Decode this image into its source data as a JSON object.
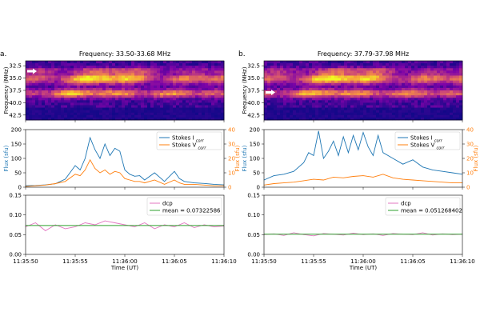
{
  "colors": {
    "stokes_i": "#1f77b4",
    "stokes_v": "#ff7f0e",
    "dcp": "#e377c2",
    "mean": "#2ca02c",
    "spectrogram_colormap": "plasma"
  },
  "chart_data": [
    {
      "panel": "a.",
      "title": "Frequency: 33.50-33.68 MHz",
      "time_ticks": [
        "11:35:50",
        "11:35:55",
        "11:36:00",
        "11:36:05",
        "11:36:10"
      ],
      "xlabel": "Time (UT)",
      "spectrogram": {
        "type": "heatmap",
        "ylabel": "Frequency (MHz)",
        "yticks": [
          "32.5",
          "35.0",
          "37.5",
          "40.0",
          "42.5"
        ],
        "ylim": [
          43.5,
          31.5
        ],
        "arrow_frequency": 33.6
      },
      "flux": {
        "type": "line",
        "ylabel": "Flux (sfu)",
        "ylabel_right": "Flux (sfu)",
        "ylim": [
          0,
          200
        ],
        "yticks": [
          "0",
          "50",
          "100",
          "150",
          "200"
        ],
        "ylim_right": [
          0,
          40
        ],
        "yticks_right": [
          "0",
          "10",
          "20",
          "30",
          "40"
        ],
        "legend_position": "top-right",
        "series": [
          {
            "name": "Stokes I",
            "sub": "corr",
            "axis": "left",
            "x": [
              0,
              1,
              2,
              3,
              4,
              5,
              5.5,
              6,
              6.5,
              7,
              7.5,
              8,
              8.5,
              9,
              9.5,
              10,
              10.5,
              11,
              11.5,
              12,
              13,
              14,
              15,
              15.5,
              16,
              17,
              18,
              19,
              20
            ],
            "values": [
              5,
              6,
              8,
              12,
              28,
              75,
              60,
              100,
              172,
              130,
              100,
              150,
              110,
              135,
              125,
              60,
              45,
              38,
              40,
              25,
              50,
              20,
              55,
              30,
              20,
              15,
              13,
              10,
              8
            ]
          },
          {
            "name": "Stokes V",
            "sub": "corr",
            "axis": "right",
            "x": [
              0,
              1,
              2,
              3,
              4,
              5,
              5.5,
              6,
              6.5,
              7,
              7.5,
              8,
              8.5,
              9,
              9.5,
              10,
              10.5,
              11,
              11.5,
              12,
              13,
              14,
              15,
              15.5,
              16,
              17,
              18,
              19,
              20
            ],
            "values": [
              0.5,
              1,
              1.5,
              2.5,
              4,
              9,
              8,
              12,
              19,
              13,
              10,
              12,
              9,
              11,
              10,
              6,
              5,
              4,
              4,
              3,
              5,
              2,
              5,
              3,
              2,
              2,
              1.5,
              1,
              1
            ]
          }
        ]
      },
      "dcp": {
        "type": "line",
        "ylim": [
          0.0,
          0.15
        ],
        "yticks": [
          "0.00",
          "0.05",
          "0.10",
          "0.15"
        ],
        "legend_position": "top-right",
        "series": [
          {
            "name": "dcp",
            "x": [
              0,
              1,
              2,
              3,
              4,
              5,
              6,
              7,
              8,
              9,
              10,
              11,
              12,
              13,
              14,
              15,
              16,
              17,
              18,
              19,
              20
            ],
            "values": [
              0.07,
              0.08,
              0.06,
              0.075,
              0.065,
              0.07,
              0.08,
              0.075,
              0.085,
              0.08,
              0.075,
              0.07,
              0.08,
              0.065,
              0.075,
              0.07,
              0.08,
              0.068,
              0.075,
              0.07,
              0.072
            ]
          }
        ],
        "mean": {
          "label": "mean = 0.07322586",
          "value": 0.07322586
        }
      }
    },
    {
      "panel": "b.",
      "title": "Frequency: 37.79-37.98 MHz",
      "time_ticks": [
        "11:35:50",
        "11:35:55",
        "11:36:00",
        "11:36:05",
        "11:36:10"
      ],
      "xlabel": "Time (UT)",
      "spectrogram": {
        "type": "heatmap",
        "ylabel": "Frequency (MHz)",
        "yticks": [
          "32.5",
          "35.0",
          "37.5",
          "40.0",
          "42.5"
        ],
        "ylim": [
          43.5,
          31.5
        ],
        "arrow_frequency": 37.9
      },
      "flux": {
        "type": "line",
        "ylabel": "Flux (sfu)",
        "ylabel_right": "Flux (sfu)",
        "ylim": [
          0,
          200
        ],
        "yticks": [
          "0",
          "50",
          "100",
          "150",
          "200"
        ],
        "ylim_right": [
          0,
          40
        ],
        "yticks_right": [
          "0",
          "10",
          "20",
          "30",
          "40"
        ],
        "legend_position": "top-right",
        "series": [
          {
            "name": "Stokes I",
            "sub": "corr",
            "axis": "left",
            "x": [
              0,
              1,
              2,
              3,
              4,
              4.5,
              5,
              5.5,
              6,
              6.5,
              7,
              7.5,
              8,
              8.5,
              9,
              9.5,
              10,
              10.5,
              11,
              11.5,
              12,
              13,
              14,
              15,
              16,
              17,
              18,
              19,
              20
            ],
            "values": [
              25,
              40,
              45,
              55,
              85,
              120,
              110,
              195,
              100,
              125,
              160,
              110,
              175,
              120,
              180,
              130,
              190,
              140,
              110,
              180,
              120,
              100,
              80,
              95,
              70,
              60,
              55,
              50,
              45
            ]
          },
          {
            "name": "Stokes V",
            "sub": "corr",
            "axis": "right",
            "x": [
              0,
              1,
              2,
              3,
              4,
              5,
              6,
              7,
              8,
              9,
              10,
              11,
              12,
              13,
              14,
              15,
              16,
              17,
              18,
              19,
              20
            ],
            "values": [
              1.5,
              2.5,
              3,
              3.5,
              4.5,
              5.5,
              5,
              7,
              6.5,
              7.5,
              8,
              7,
              9,
              6.5,
              5.5,
              5,
              4.5,
              4,
              3.5,
              3,
              3
            ]
          }
        ]
      },
      "dcp": {
        "type": "line",
        "ylim": [
          0.0,
          0.15
        ],
        "yticks": [
          "0.00",
          "0.05",
          "0.10",
          "0.15"
        ],
        "legend_position": "top-right",
        "series": [
          {
            "name": "dcp",
            "x": [
              0,
              1,
              2,
              3,
              4,
              5,
              6,
              7,
              8,
              9,
              10,
              11,
              12,
              13,
              14,
              15,
              16,
              17,
              18,
              19,
              20
            ],
            "values": [
              0.05,
              0.052,
              0.048,
              0.055,
              0.05,
              0.047,
              0.053,
              0.051,
              0.049,
              0.054,
              0.05,
              0.052,
              0.048,
              0.053,
              0.051,
              0.05,
              0.055,
              0.049,
              0.052,
              0.05,
              0.051
            ]
          }
        ],
        "mean": {
          "label": "mean = 0.051268402",
          "value": 0.051268402
        }
      }
    }
  ]
}
